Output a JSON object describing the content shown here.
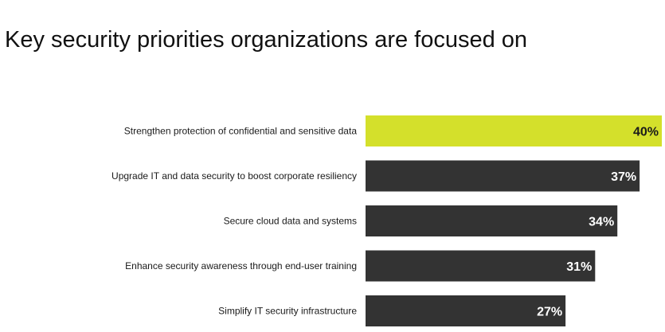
{
  "title": "Key security priorities organizations are focused on",
  "colors": {
    "highlight": "#d4e02b",
    "default": "#333333",
    "highlight_text": "#1a1a1a",
    "default_text": "#ffffff"
  },
  "chart_data": {
    "type": "bar",
    "orientation": "horizontal",
    "title": "Key security priorities organizations are focused on",
    "categories": [
      "Strengthen protection of confidential and sensitive data",
      "Upgrade IT and data security to boost corporate resiliency",
      "Secure cloud data and systems",
      "Enhance security awareness through end-user training",
      "Simplify IT security infrastructure"
    ],
    "values": [
      40,
      37,
      34,
      31,
      27
    ],
    "value_labels": [
      "40%",
      "37%",
      "34%",
      "31%",
      "27%"
    ],
    "highlight_index": 0,
    "xlim": [
      0,
      40
    ],
    "grid": false,
    "legend": "none"
  }
}
